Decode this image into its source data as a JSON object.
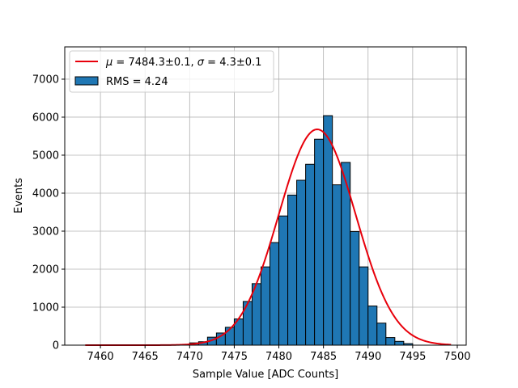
{
  "chart_data": {
    "type": "histogram",
    "xlabel": "Sample Value [ADC Counts]",
    "ylabel": "Events",
    "xlim": [
      7456,
      7501
    ],
    "ylim": [
      0,
      7850
    ],
    "xticks": [
      7460,
      7465,
      7470,
      7475,
      7480,
      7485,
      7490,
      7495,
      7500
    ],
    "yticks": [
      0,
      1000,
      2000,
      3000,
      4000,
      5000,
      6000,
      7000
    ],
    "grid": true,
    "legend_position": "top-left",
    "histogram": {
      "name": "RMS = 4.24",
      "color": "#1f77b4",
      "edge_color": "#000000",
      "bin_width": 1,
      "bins": [
        {
          "x0": 7470,
          "count": 60
        },
        {
          "x0": 7471,
          "count": 90
        },
        {
          "x0": 7472,
          "count": 210
        },
        {
          "x0": 7473,
          "count": 320
        },
        {
          "x0": 7474,
          "count": 470
        },
        {
          "x0": 7475,
          "count": 690
        },
        {
          "x0": 7476,
          "count": 1150
        },
        {
          "x0": 7477,
          "count": 1620
        },
        {
          "x0": 7478,
          "count": 2060
        },
        {
          "x0": 7479,
          "count": 2700
        },
        {
          "x0": 7480,
          "count": 3400
        },
        {
          "x0": 7481,
          "count": 3950
        },
        {
          "x0": 7482,
          "count": 4340
        },
        {
          "x0": 7483,
          "count": 4760
        },
        {
          "x0": 7484,
          "count": 5420
        },
        {
          "x0": 7485,
          "count": 6040
        },
        {
          "x0": 7486,
          "count": 4220
        },
        {
          "x0": 7487,
          "count": 4810
        },
        {
          "x0": 7488,
          "count": 2990
        },
        {
          "x0": 7489,
          "count": 2060
        },
        {
          "x0": 7490,
          "count": 1030
        },
        {
          "x0": 7491,
          "count": 580
        },
        {
          "x0": 7492,
          "count": 200
        },
        {
          "x0": 7493,
          "count": 100
        },
        {
          "x0": 7494,
          "count": 40
        }
      ]
    },
    "fit": {
      "name": "μ = 7484.3±0.1, σ = 4.3±0.1",
      "mu_label": "μ",
      "sigma_label": "σ",
      "mu_text": "7484.3±0.1",
      "sigma_text": "4.3±0.1",
      "color": "#e8000b",
      "type": "gaussian",
      "mu": 7484.3,
      "sigma": 4.3,
      "amplitude": 5680,
      "x_range": [
        7458.3,
        7499.3
      ]
    }
  }
}
